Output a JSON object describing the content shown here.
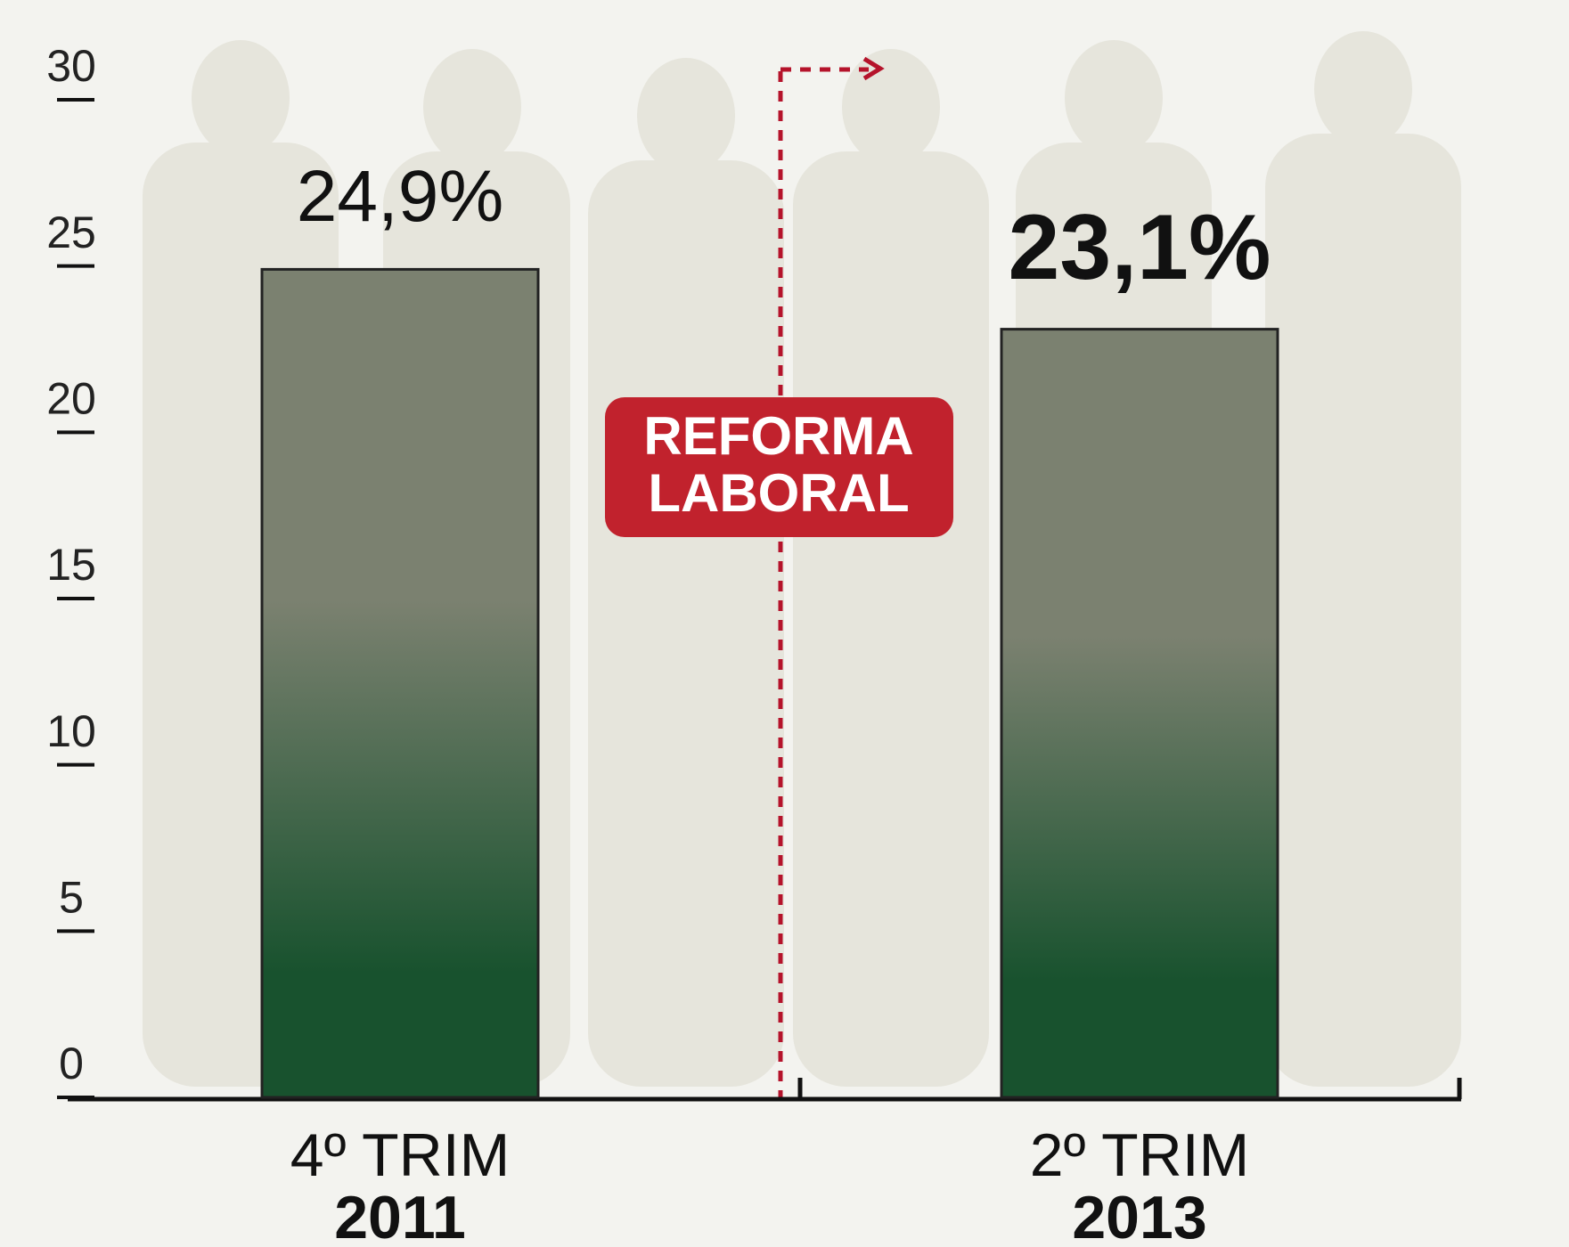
{
  "chart_data": {
    "type": "bar",
    "categories": [
      {
        "period": "4º TRIM",
        "year": "2011"
      },
      {
        "period": "2º TRIM",
        "year": "2013"
      }
    ],
    "values": [
      24.9,
      23.1
    ],
    "value_labels": [
      "24,9%",
      "23,1%"
    ],
    "ylim": [
      0,
      30
    ],
    "yticks": [
      0,
      5,
      10,
      15,
      20,
      25,
      30
    ],
    "annotation": {
      "line1": "REFORMA",
      "line2": "LABORAL"
    },
    "color_top": "#7b8170",
    "color_bottom": "#18522e"
  }
}
